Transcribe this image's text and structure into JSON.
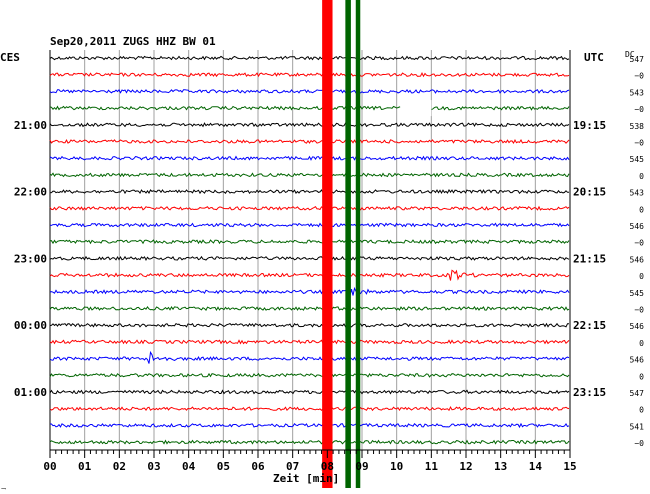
{
  "header": {
    "title": "Sep20,2011   ZUGS HHZ BW 01",
    "left_tz": "CES",
    "right_tz": "UTC",
    "dc_label": "DC"
  },
  "footer": {
    "xlabel": "Zeit [min]",
    "corner_mark": "͢"
  },
  "colors": {
    "black": "#000000",
    "red": "#ff0000",
    "blue": "#0000ff",
    "green": "#006400",
    "grid": "#a0a0a0",
    "white_gap": "#ffffff"
  },
  "chart_data": {
    "type": "line",
    "title": "Sep20,2011   ZUGS HHZ BW 01",
    "xlabel": "Zeit [min]",
    "ylabel": "",
    "xlim": [
      0,
      15
    ],
    "x_ticks": [
      "00",
      "01",
      "02",
      "03",
      "04",
      "05",
      "06",
      "07",
      "08",
      "09",
      "10",
      "11",
      "12",
      "13",
      "14",
      "15"
    ],
    "trace_color_cycle": [
      "black",
      "red",
      "blue",
      "green"
    ],
    "traces": 24,
    "left_time_labels": [
      {
        "trace": 4,
        "label": "21:00"
      },
      {
        "trace": 8,
        "label": "22:00"
      },
      {
        "trace": 12,
        "label": "23:00"
      },
      {
        "trace": 16,
        "label": "00:00"
      },
      {
        "trace": 20,
        "label": "01:00"
      }
    ],
    "right_time_labels": [
      {
        "trace": 4,
        "label": "19:15"
      },
      {
        "trace": 8,
        "label": "20:15"
      },
      {
        "trace": 12,
        "label": "21:15"
      },
      {
        "trace": 16,
        "label": "22:15"
      },
      {
        "trace": 20,
        "label": "23:15"
      }
    ],
    "dc_values": [
      "547",
      "−0",
      "543",
      "−0",
      "538",
      "−0",
      "545",
      "0",
      "543",
      "0",
      "546",
      "−0",
      "546",
      "0",
      "545",
      "−0",
      "546",
      "0",
      "546",
      "0",
      "547",
      "0",
      "541",
      "−0"
    ],
    "events": [
      {
        "trace": 18,
        "x": 2.9
      },
      {
        "trace": 13,
        "x": 11.6
      },
      {
        "trace": 14,
        "x": 8.7
      }
    ],
    "gaps": [
      {
        "trace": 3,
        "x_start": 10.1,
        "x_end": 11.0
      }
    ],
    "vertical_bands": [
      {
        "color": "red",
        "x_start": 7.85,
        "x_end": 8.15
      },
      {
        "color": "green",
        "x_start": 8.52,
        "x_end": 8.68
      },
      {
        "color": "green",
        "x_start": 8.82,
        "x_end": 8.95
      }
    ]
  }
}
